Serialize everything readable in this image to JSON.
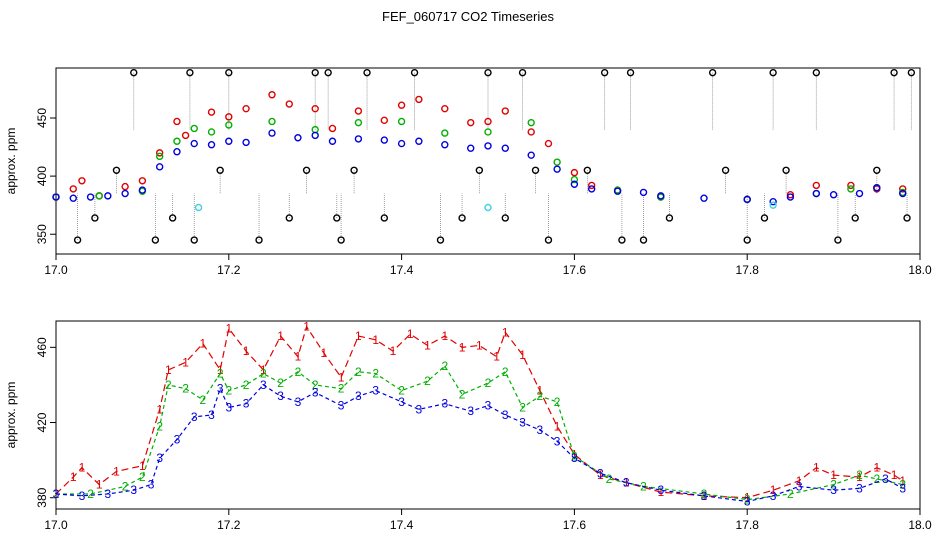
{
  "title": "FEF_060717  CO2 Timeseries",
  "colors": {
    "black": "#000000",
    "red": "#e00000",
    "green": "#00b000",
    "blue": "#0000e0",
    "cyan": "#40d0e0",
    "drop_line": "#888888"
  },
  "chart_data": [
    {
      "type": "scatter",
      "panel": "top",
      "xlabel": "",
      "ylabel": "approx. ppm",
      "xlim": [
        17.0,
        18.0
      ],
      "ylim": [
        333,
        493
      ],
      "x_ticks": [
        17.0,
        17.2,
        17.4,
        17.6,
        17.8,
        18.0
      ],
      "x_tick_labels": [
        "17.0",
        "17.2",
        "17.4",
        "17.6",
        "17.8",
        "18.0"
      ],
      "y_ticks": [
        350,
        400,
        450
      ],
      "y_tick_labels": [
        "350",
        "400",
        "450"
      ],
      "grid": false,
      "legend": "none",
      "marker": "open-circle",
      "series": [
        {
          "color": "red",
          "x": [
            17.0,
            17.02,
            17.03,
            17.05,
            17.08,
            17.1,
            17.12,
            17.14,
            17.15,
            17.18,
            17.2,
            17.22,
            17.25,
            17.27,
            17.3,
            17.32,
            17.35,
            17.38,
            17.4,
            17.42,
            17.45,
            17.48,
            17.5,
            17.52,
            17.55,
            17.57,
            17.6,
            17.62,
            17.65,
            17.7,
            17.8,
            17.85,
            17.88,
            17.92,
            17.95,
            17.98
          ],
          "y": [
            382,
            389,
            396,
            383,
            391,
            396,
            420,
            447,
            435,
            455,
            451,
            458,
            470,
            462,
            458,
            441,
            456,
            448,
            461,
            466,
            458,
            446,
            447,
            456,
            438,
            428,
            403,
            392,
            388,
            382,
            380,
            384,
            392,
            392,
            389,
            389
          ]
        },
        {
          "color": "green",
          "x": [
            17.0,
            17.05,
            17.1,
            17.12,
            17.14,
            17.16,
            17.18,
            17.2,
            17.25,
            17.3,
            17.35,
            17.4,
            17.45,
            17.5,
            17.55,
            17.58,
            17.6,
            17.65,
            17.7,
            17.8,
            17.88,
            17.92,
            17.95,
            17.98
          ],
          "y": [
            382,
            383,
            387,
            417,
            430,
            441,
            438,
            444,
            447,
            440,
            446,
            447,
            437,
            438,
            446,
            412,
            397,
            388,
            382,
            380,
            385,
            389,
            390,
            386
          ]
        },
        {
          "color": "blue",
          "x": [
            17.0,
            17.02,
            17.04,
            17.06,
            17.08,
            17.1,
            17.12,
            17.14,
            17.16,
            17.18,
            17.2,
            17.22,
            17.25,
            17.28,
            17.3,
            17.32,
            17.35,
            17.38,
            17.4,
            17.42,
            17.45,
            17.48,
            17.5,
            17.52,
            17.55,
            17.58,
            17.6,
            17.62,
            17.65,
            17.68,
            17.7,
            17.75,
            17.8,
            17.83,
            17.85,
            17.88,
            17.9,
            17.93,
            17.95,
            17.98
          ],
          "y": [
            382,
            381,
            382,
            383,
            385,
            388,
            408,
            421,
            428,
            427,
            430,
            429,
            437,
            433,
            435,
            430,
            432,
            431,
            428,
            430,
            427,
            424,
            426,
            424,
            418,
            406,
            393,
            389,
            387,
            386,
            383,
            381,
            380,
            378,
            382,
            385,
            384,
            385,
            390,
            385
          ]
        },
        {
          "color": "cyan",
          "x": [
            17.165,
            17.5,
            17.83
          ],
          "y": [
            373,
            373,
            375
          ]
        },
        {
          "color": "black",
          "x": [
            17.025,
            17.045,
            17.07,
            17.09,
            17.115,
            17.135,
            17.155,
            17.16,
            17.19,
            17.2,
            17.235,
            17.27,
            17.29,
            17.3,
            17.315,
            17.325,
            17.33,
            17.345,
            17.36,
            17.38,
            17.415,
            17.445,
            17.47,
            17.49,
            17.5,
            17.52,
            17.54,
            17.555,
            17.57,
            17.615,
            17.635,
            17.655,
            17.665,
            17.68,
            17.71,
            17.76,
            17.775,
            17.8,
            17.82,
            17.83,
            17.845,
            17.88,
            17.905,
            17.925,
            17.95,
            17.97,
            17.985,
            17.99
          ],
          "y": [
            345,
            364,
            405,
            489,
            345,
            364,
            489,
            345,
            405,
            489,
            345,
            364,
            405,
            489,
            489,
            364,
            345,
            405,
            489,
            364,
            489,
            345,
            364,
            405,
            489,
            364,
            489,
            405,
            345,
            405,
            489,
            345,
            489,
            345,
            364,
            489,
            405,
            345,
            364,
            489,
            405,
            489,
            345,
            364,
            405,
            489,
            364,
            489
          ]
        }
      ]
    },
    {
      "type": "line",
      "panel": "bottom",
      "xlabel": "",
      "ylabel": "approx. ppm",
      "xlim": [
        17.0,
        18.0
      ],
      "ylim": [
        374,
        474
      ],
      "x_ticks": [
        17.0,
        17.2,
        17.4,
        17.6,
        17.8,
        18.0
      ],
      "x_tick_labels": [
        "17.0",
        "17.2",
        "17.4",
        "17.6",
        "17.8",
        "18.0"
      ],
      "y_ticks": [
        380,
        420,
        460
      ],
      "y_tick_labels": [
        "380",
        "420",
        "460"
      ],
      "grid": false,
      "legend": "none",
      "series": [
        {
          "marker": "1",
          "color": "red",
          "dash": "long-dash",
          "x": [
            17.0,
            17.02,
            17.03,
            17.05,
            17.07,
            17.1,
            17.12,
            17.13,
            17.15,
            17.17,
            17.19,
            17.2,
            17.22,
            17.24,
            17.26,
            17.28,
            17.29,
            17.31,
            17.33,
            17.35,
            17.37,
            17.39,
            17.41,
            17.43,
            17.45,
            17.47,
            17.49,
            17.51,
            17.52,
            17.54,
            17.56,
            17.58,
            17.6,
            17.63,
            17.66,
            17.7,
            17.75,
            17.8,
            17.83,
            17.86,
            17.88,
            17.9,
            17.93,
            17.95,
            17.97,
            17.98
          ],
          "y": [
            382,
            391,
            396,
            387,
            394,
            397,
            427,
            448,
            452,
            462,
            448,
            470,
            458,
            448,
            466,
            455,
            471,
            457,
            444,
            466,
            464,
            458,
            467,
            461,
            466,
            460,
            461,
            455,
            468,
            456,
            437,
            418,
            403,
            392,
            388,
            383,
            381,
            380,
            384,
            389,
            396,
            392,
            391,
            396,
            392,
            389
          ]
        },
        {
          "marker": "2",
          "color": "green",
          "dash": "short-dash",
          "x": [
            17.0,
            17.04,
            17.08,
            17.1,
            17.12,
            17.13,
            17.15,
            17.17,
            17.19,
            17.2,
            17.22,
            17.24,
            17.26,
            17.28,
            17.3,
            17.33,
            17.35,
            17.37,
            17.4,
            17.43,
            17.45,
            17.47,
            17.5,
            17.52,
            17.54,
            17.56,
            17.58,
            17.6,
            17.64,
            17.68,
            17.75,
            17.8,
            17.85,
            17.9,
            17.93,
            17.95,
            17.98
          ],
          "y": [
            382,
            382,
            386,
            391,
            418,
            440,
            438,
            432,
            446,
            437,
            440,
            446,
            441,
            447,
            440,
            438,
            447,
            446,
            437,
            442,
            450,
            435,
            441,
            447,
            428,
            434,
            431,
            402,
            390,
            386,
            382,
            379,
            382,
            387,
            392,
            390,
            387
          ]
        },
        {
          "marker": "3",
          "color": "blue",
          "dash": "short-dash",
          "x": [
            17.0,
            17.03,
            17.06,
            17.09,
            17.11,
            17.12,
            17.14,
            17.16,
            17.18,
            17.19,
            17.2,
            17.22,
            17.24,
            17.26,
            17.28,
            17.3,
            17.33,
            17.35,
            17.37,
            17.4,
            17.42,
            17.45,
            17.48,
            17.5,
            17.52,
            17.54,
            17.56,
            17.58,
            17.6,
            17.63,
            17.66,
            17.7,
            17.75,
            17.8,
            17.83,
            17.86,
            17.9,
            17.93,
            17.96,
            17.98
          ],
          "y": [
            382,
            381,
            382,
            384,
            387,
            401,
            411,
            423,
            424,
            438,
            428,
            430,
            440,
            434,
            431,
            436,
            429,
            434,
            437,
            431,
            427,
            430,
            426,
            429,
            424,
            420,
            416,
            410,
            401,
            393,
            388,
            384,
            381,
            378,
            381,
            386,
            384,
            385,
            390,
            385
          ]
        }
      ]
    }
  ]
}
